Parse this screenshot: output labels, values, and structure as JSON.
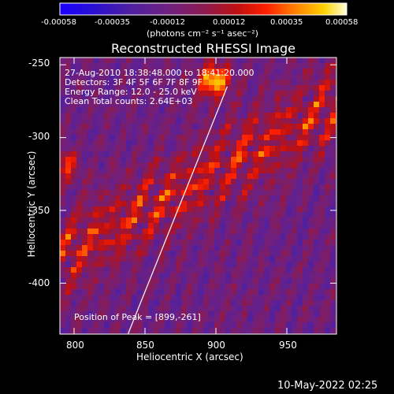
{
  "chart_data": {
    "type": "heatmap",
    "title": "Reconstructed RHESSI Image",
    "xlabel": "Heliocentric X (arcsec)",
    "ylabel": "Heliocentric Y (arcsec)",
    "xlim": [
      790,
      985
    ],
    "ylim": [
      -435,
      -245
    ],
    "x_ticks": [
      "800",
      "850",
      "900",
      "950"
    ],
    "x_tick_values": [
      800,
      850,
      900,
      950
    ],
    "y_ticks": [
      "-250",
      "-300",
      "-350",
      "-400"
    ],
    "y_tick_values": [
      -250,
      -300,
      -350,
      -400
    ],
    "colorbar": {
      "min": -0.00058,
      "max": 0.00058,
      "ticks": [
        "-0.00058",
        "-0.00035",
        "-0.00012",
        "0.00012",
        "0.00035",
        "0.00058"
      ],
      "units": "(photons cm⁻² s⁻¹ asec⁻²)"
    },
    "annotations": {
      "time": "27-Aug-2010 18:38:48.000 to 18:41:20.000",
      "detectors": "Detectors: 3F 4F 5F 6F 7F 8F 9F",
      "energy": "Energy Range: 12.0 - 25.0 keV",
      "clean": "Clean    Total counts: 2.64E+03",
      "peak": "Position of Peak = [899,-261]"
    },
    "peak_position": [
      899,
      -261
    ],
    "limb_line": [
      [
        838,
        -435
      ],
      [
        908,
        -265
      ]
    ],
    "footer": "10-May-2022 02:25"
  }
}
